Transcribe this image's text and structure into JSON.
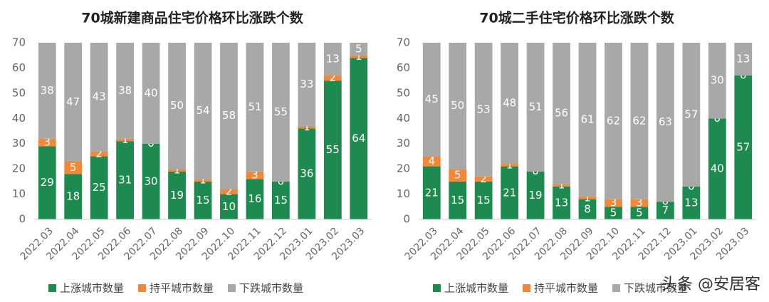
{
  "chart_data": [
    {
      "type": "stacked_bar",
      "title": "70城新建商品住宅价格环比涨跌个数",
      "categories": [
        "2022.03",
        "2022.04",
        "2022.05",
        "2022.06",
        "2022.07",
        "2022.08",
        "2022.09",
        "2022.10",
        "2022.11",
        "2022.12",
        "2023.01",
        "2023.02",
        "2023.03"
      ],
      "series": [
        {
          "name": "上涨城市数量",
          "color": "#1f8a4f",
          "values": [
            29,
            18,
            25,
            31,
            30,
            19,
            15,
            10,
            16,
            15,
            36,
            55,
            64
          ]
        },
        {
          "name": "持平城市数量",
          "color": "#f0883a",
          "values": [
            3,
            5,
            2,
            1,
            0,
            1,
            1,
            2,
            3,
            0,
            1,
            2,
            1
          ]
        },
        {
          "name": "下跌城市数量",
          "color": "#a8a8a8",
          "values": [
            38,
            47,
            43,
            38,
            40,
            50,
            54,
            58,
            51,
            55,
            33,
            13,
            5
          ]
        }
      ],
      "ylim": [
        0,
        70
      ],
      "yticks": [
        0,
        10,
        20,
        30,
        40,
        50,
        60,
        70
      ],
      "grid": false
    },
    {
      "type": "stacked_bar",
      "title": "70城二手住宅价格环比涨跌个数",
      "categories": [
        "2022.03",
        "2022.04",
        "2022.05",
        "2022.06",
        "2022.07",
        "2022.08",
        "2022.09",
        "2022.10",
        "2022.11",
        "2022.12",
        "2023.01",
        "2023.02",
        "2023.03"
      ],
      "series": [
        {
          "name": "上涨城市数量",
          "color": "#1f8a4f",
          "values": [
            21,
            15,
            15,
            21,
            19,
            13,
            8,
            5,
            5,
            7,
            13,
            40,
            57
          ]
        },
        {
          "name": "持平城市数量",
          "color": "#f0883a",
          "values": [
            4,
            5,
            2,
            1,
            0,
            1,
            1,
            3,
            3,
            0,
            0,
            0,
            0
          ]
        },
        {
          "name": "下跌城市数量",
          "color": "#a8a8a8",
          "values": [
            45,
            50,
            53,
            48,
            51,
            56,
            61,
            62,
            62,
            63,
            57,
            30,
            13
          ]
        }
      ],
      "ylim": [
        0,
        70
      ],
      "yticks": [
        0,
        10,
        20,
        30,
        40,
        50,
        60,
        70
      ],
      "grid": false
    }
  ],
  "watermark": "头条 @安居客"
}
